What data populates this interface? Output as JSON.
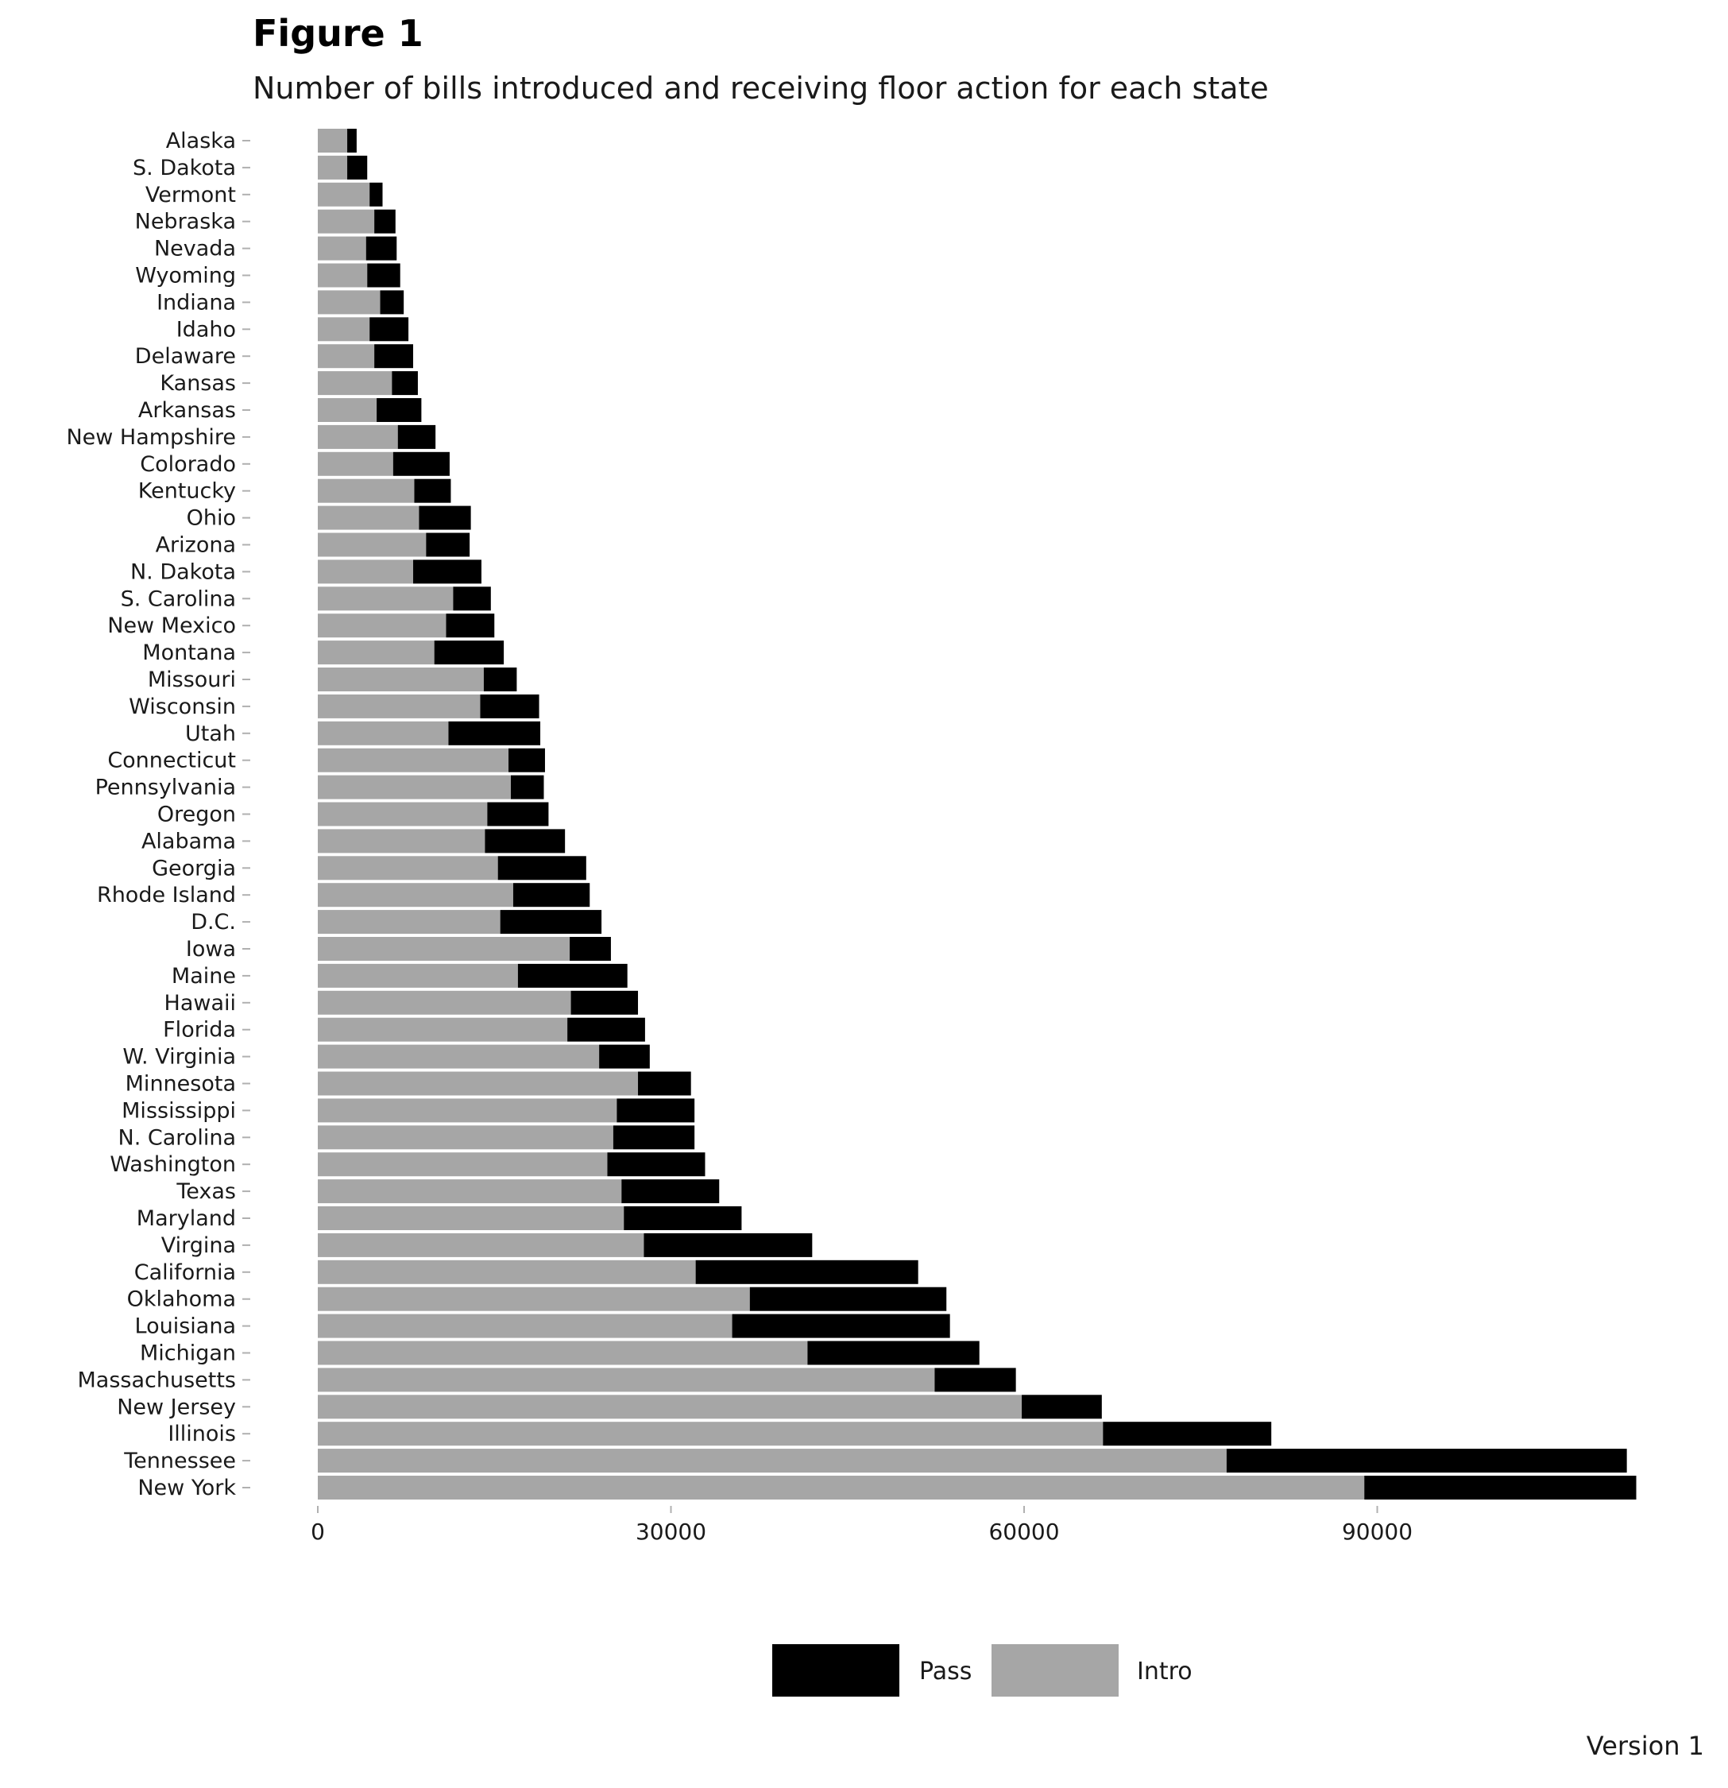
{
  "chart_data": {
    "type": "bar",
    "orientation": "horizontal",
    "stacked": true,
    "title": "Figure 1",
    "subtitle": "Number of bills introduced and receiving floor action for each state",
    "caption": "Version 1",
    "xlabel": "",
    "ylabel": "",
    "xlim": [
      0,
      112000
    ],
    "x_ticks": [
      "0",
      "30000",
      "60000",
      "90000"
    ],
    "x_tick_values": [
      0,
      30000,
      60000,
      90000
    ],
    "grid": false,
    "legend_position": "bottom",
    "legend": [
      "Pass",
      "Intro"
    ],
    "colors": {
      "Pass": "#000000",
      "Intro": "#a6a6a6"
    },
    "categories": [
      "Alaska",
      "S. Dakota",
      "Vermont",
      "Nebraska",
      "Nevada",
      "Wyoming",
      "Indiana",
      "Idaho",
      "Delaware",
      "Kansas",
      "Arkansas",
      "New Hampshire",
      "Colorado",
      "Kentucky",
      "Ohio",
      "Arizona",
      "N. Dakota",
      "S. Carolina",
      "New Mexico",
      "Montana",
      "Missouri",
      "Wisconsin",
      "Utah",
      "Connecticut",
      "Pennsylvania",
      "Oregon",
      "Alabama",
      "Georgia",
      "Rhode Island",
      "D.C.",
      "Iowa",
      "Maine",
      "Hawaii",
      "Florida",
      "W. Virginia",
      "Minnesota",
      "Mississippi",
      "N. Carolina",
      "Washington",
      "Texas",
      "Maryland",
      "Virgina",
      "California",
      "Oklahoma",
      "Louisiana",
      "Michigan",
      "Massachusetts",
      "New Jersey",
      "Illinois",
      "Tennessee",
      "New York"
    ],
    "series": [
      {
        "name": "Intro",
        "values": [
          2500,
          2500,
          4400,
          4800,
          4100,
          4200,
          5300,
          4400,
          4800,
          6300,
          5000,
          6800,
          6400,
          8200,
          8600,
          9200,
          8100,
          11500,
          10900,
          9900,
          14100,
          13800,
          11100,
          16200,
          16400,
          14400,
          14200,
          15300,
          16600,
          15500,
          21400,
          17000,
          21500,
          21200,
          23900,
          27200,
          25400,
          25100,
          24600,
          25800,
          26000,
          27700,
          32100,
          36700,
          35200,
          41600,
          52400,
          59800,
          66700,
          77200,
          88900
        ]
      },
      {
        "name": "Pass",
        "values": [
          800,
          1700,
          1100,
          1800,
          2600,
          2800,
          2000,
          3300,
          3300,
          2200,
          3800,
          3200,
          4800,
          3100,
          4400,
          3700,
          5800,
          3200,
          4100,
          5900,
          2800,
          5000,
          7800,
          3100,
          2800,
          5200,
          6800,
          7500,
          6500,
          8600,
          3500,
          9300,
          5700,
          6600,
          4300,
          4500,
          6600,
          6900,
          8300,
          8300,
          10000,
          14300,
          18900,
          16700,
          18500,
          14600,
          6900,
          6800,
          14300,
          34000,
          23100
        ]
      }
    ]
  }
}
